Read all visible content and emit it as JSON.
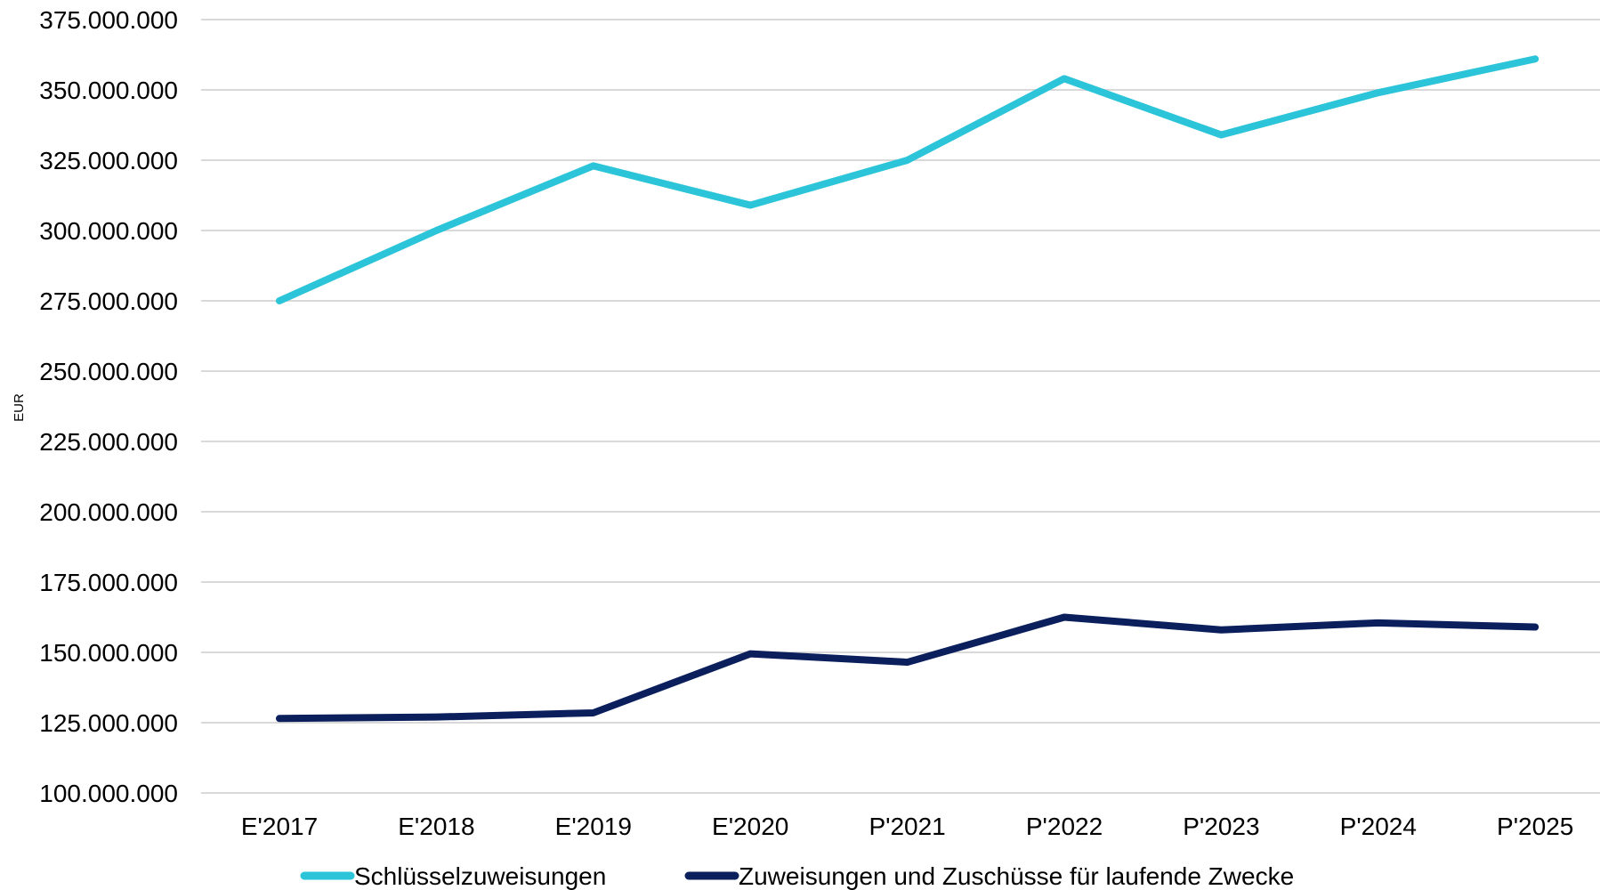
{
  "chart_data": {
    "type": "line",
    "ylabel": "EUR",
    "xlabel": "",
    "categories": [
      "E'2017",
      "E'2018",
      "E'2019",
      "E'2020",
      "P'2021",
      "P'2022",
      "P'2023",
      "P'2024",
      "P'2025"
    ],
    "ylim": [
      100000000,
      375000000
    ],
    "yticks": [
      100000000,
      125000000,
      150000000,
      175000000,
      200000000,
      225000000,
      250000000,
      275000000,
      300000000,
      325000000,
      350000000,
      375000000
    ],
    "ytick_labels": [
      "100.000.000",
      "125.000.000",
      "150.000.000",
      "175.000.000",
      "200.000.000",
      "225.000.000",
      "250.000.000",
      "275.000.000",
      "300.000.000",
      "325.000.000",
      "350.000.000",
      "375.000.000"
    ],
    "grid": true,
    "legend_position": "bottom",
    "series": [
      {
        "name": "Schlüsselzuweisungen",
        "color": "#2bc4d9",
        "values": [
          275000000,
          300000000,
          323000000,
          309000000,
          325000000,
          354000000,
          334000000,
          349000000,
          361000000
        ]
      },
      {
        "name": "Zuweisungen und Zuschüsse für laufende Zwecke",
        "color": "#0b1f5c",
        "values": [
          126500000,
          127000000,
          128500000,
          149500000,
          146500000,
          162500000,
          158000000,
          160500000,
          159000000
        ]
      }
    ]
  }
}
